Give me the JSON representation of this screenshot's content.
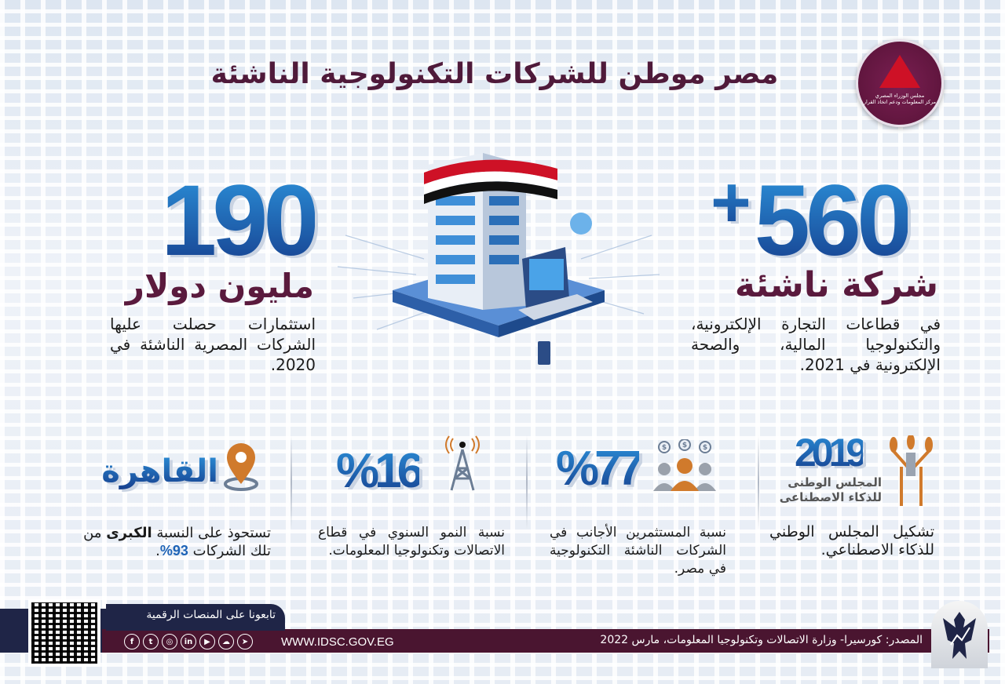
{
  "title": "مصر موطن للشركات التكنولوجية الناشئة",
  "logo": {
    "line1": "مجلس الوزراء المصري",
    "line2": "مركز المعلومات ودعم اتخاذ القرار"
  },
  "stat_startups": {
    "number": "560",
    "plus": "+",
    "label": "شركة ناشئة",
    "description": "في قطاعات التجارة الإلكترونية، والتكنولوجيا المالية، والصحة الإلكترونية في 2021."
  },
  "stat_investment": {
    "number": "190",
    "label": "مليون دولار",
    "description": "استثمارات حصلت عليها الشركات المصرية الناشئة في 2020."
  },
  "bottom": [
    {
      "headline": "2019",
      "sub1": "المجلس الوطنى",
      "sub2": "للذكاء الاصطناعى",
      "icon": "wheat-emblem-icon",
      "text": "تشكيل المجلس الوطني للذكاء الاصطناعي."
    },
    {
      "headline": "%77",
      "icon": "investors-icon",
      "text": "نسبة المستثمرين الأجانب في الشركات الناشئة التكنولوجية في مصر."
    },
    {
      "headline": "%16",
      "icon": "antenna-tower-icon",
      "text": "نسبة النمو السنوي في قطاع الاتصالات وتكنولوجيا المعلومات."
    },
    {
      "headline": "القاهرة",
      "icon": "location-pin-icon",
      "text_a": "تستحوذ على النسبة ",
      "text_bold": "الكبرى",
      "text_b": " من تلك الشركات ",
      "text_pct": "93%",
      "text_end": "."
    }
  ],
  "footer": {
    "follow": "تابعونا على المنصات الرقمية",
    "website": "WWW.IDSC.GOV.EG",
    "source": "المصدر: كورسيرا- وزارة الاتصالات وتكنولوجيا المعلومات، مارس 2022",
    "social": [
      "facebook-icon",
      "twitter-icon",
      "instagram-icon",
      "linkedin-icon",
      "youtube-icon",
      "soundcloud-icon",
      "telegram-icon"
    ]
  },
  "colors": {
    "blue": "#1f64b7",
    "maroon": "#5a1a3d",
    "navy": "#1f2547",
    "orange": "#d07a2c"
  }
}
